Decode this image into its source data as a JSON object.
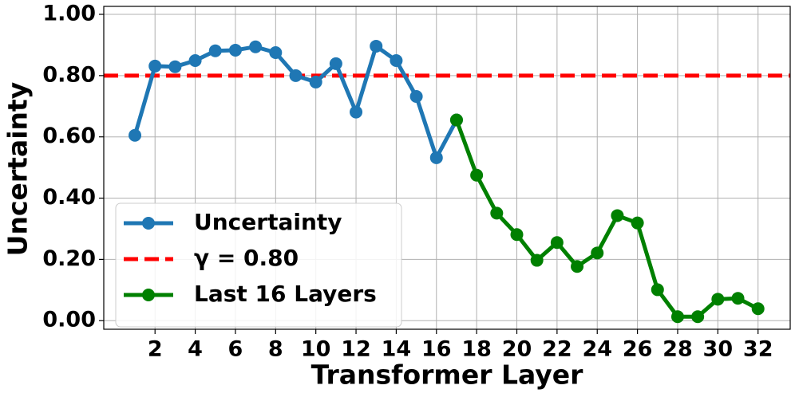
{
  "chart_data": {
    "type": "line",
    "xlabel": "Transformer Layer",
    "ylabel": "Uncertainty",
    "xlim": [
      -0.55,
      33.6
    ],
    "ylim": [
      -0.028,
      1.026
    ],
    "xticks": [
      2,
      4,
      6,
      8,
      10,
      12,
      14,
      16,
      18,
      20,
      22,
      24,
      26,
      28,
      30,
      32
    ],
    "yticks": [
      {
        "value": 0,
        "label": "0.00"
      },
      {
        "value": 0.2,
        "label": "0.20"
      },
      {
        "value": 0.4,
        "label": "0.40"
      },
      {
        "value": 0.6,
        "label": "0.60"
      },
      {
        "value": 0.8,
        "label": "0.80"
      },
      {
        "value": 1,
        "label": "1.00"
      }
    ],
    "grid": true,
    "legend": "lower left",
    "series": [
      {
        "name": "Uncertainty",
        "color": "#1f77b4",
        "x": [
          1,
          2,
          3,
          4,
          5,
          6,
          7,
          8,
          9,
          10,
          11,
          12,
          13,
          14,
          15,
          16,
          17
        ],
        "values": [
          0.605,
          0.831,
          0.829,
          0.849,
          0.881,
          0.883,
          0.894,
          0.875,
          0.8,
          0.779,
          0.839,
          0.681,
          0.896,
          0.849,
          0.732,
          0.532,
          0.655
        ]
      },
      {
        "name": "Last 16 Layers",
        "color": "#008000",
        "x": [
          17,
          18,
          19,
          20,
          21,
          22,
          23,
          24,
          25,
          26,
          27,
          28,
          29,
          30,
          31,
          32
        ],
        "values": [
          0.655,
          0.475,
          0.351,
          0.281,
          0.197,
          0.255,
          0.177,
          0.221,
          0.343,
          0.319,
          0.101,
          0.013,
          0.013,
          0.07,
          0.073,
          0.039
        ]
      }
    ],
    "threshold": {
      "value": 0.8,
      "label": "γ = 0.80",
      "color": "#ff0000"
    }
  }
}
